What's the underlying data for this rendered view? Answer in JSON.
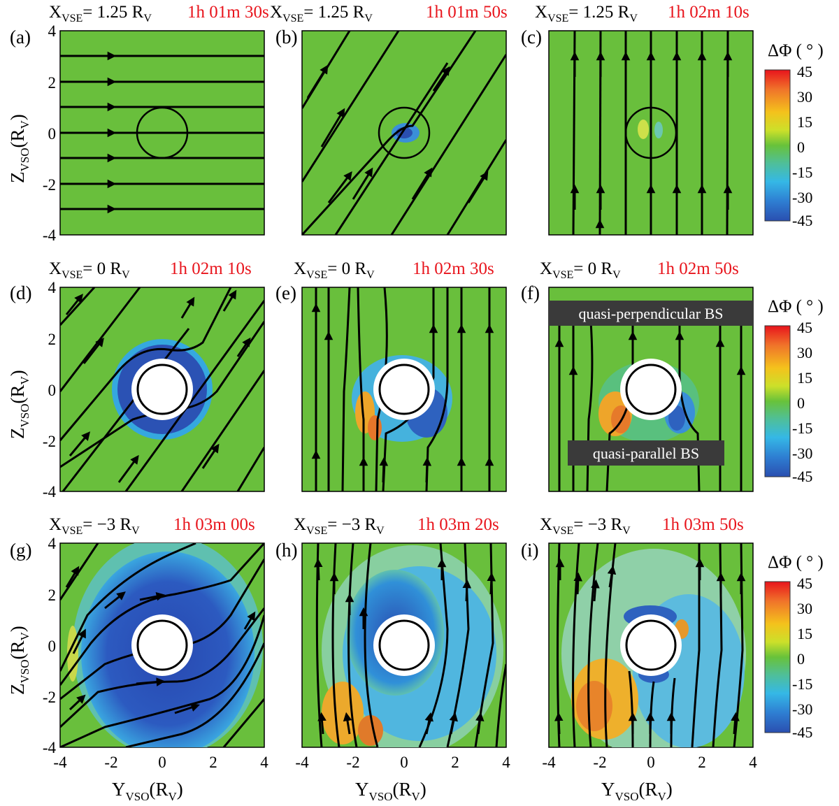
{
  "panels": [
    {
      "tag": "(a)",
      "x_prefix": "X",
      "x_sub": "VSE",
      "x_value": "= 1.25 R",
      "x_value_sub": "V",
      "time": "1h 01m 30s"
    },
    {
      "tag": "(b)",
      "x_prefix": "X",
      "x_sub": "VSE",
      "x_value": "= 1.25 R",
      "x_value_sub": "V",
      "time": "1h 01m 50s"
    },
    {
      "tag": "(c)",
      "x_prefix": "X",
      "x_sub": "VSE",
      "x_value": "= 1.25 R",
      "x_value_sub": "V",
      "time": "1h 02m 10s"
    },
    {
      "tag": "(d)",
      "x_prefix": "X",
      "x_sub": "VSE",
      "x_value": "= 0 R",
      "x_value_sub": "V",
      "time": "1h 02m 10s"
    },
    {
      "tag": "(e)",
      "x_prefix": "X",
      "x_sub": "VSE",
      "x_value": "= 0 R",
      "x_value_sub": "V",
      "time": "1h 02m 30s"
    },
    {
      "tag": "(f)",
      "x_prefix": "X",
      "x_sub": "VSE",
      "x_value": "= 0 R",
      "x_value_sub": "V",
      "time": "1h 02m 50s"
    },
    {
      "tag": "(g)",
      "x_prefix": "X",
      "x_sub": "VSE",
      "x_value": "= −3 R",
      "x_value_sub": "V",
      "time": "1h 03m 00s"
    },
    {
      "tag": "(h)",
      "x_prefix": "X",
      "x_sub": "VSE",
      "x_value": "= −3 R",
      "x_value_sub": "V",
      "time": "1h 03m 20s"
    },
    {
      "tag": "(i)",
      "x_prefix": "X",
      "x_sub": "VSE",
      "x_value": "= −3 R",
      "x_value_sub": "V",
      "time": "1h 03m 50s"
    }
  ],
  "axes": {
    "x_ticks": [
      "-4",
      "-2",
      "0",
      "2",
      "4"
    ],
    "y_ticks": [
      "4",
      "2",
      "0",
      "-2",
      "-4"
    ],
    "x_label_main": "Y",
    "x_label_sub": "VSO",
    "x_label_unit": "(R",
    "x_label_unit_sub": "V",
    "x_label_close": ")",
    "y_label_main": "Z",
    "y_label_sub": "VSO",
    "y_label_unit": "(R",
    "y_label_unit_sub": "V",
    "y_label_close": ")"
  },
  "colorbar": {
    "title": "ΔΦ ( ° )",
    "ticks": [
      "45",
      "30",
      "15",
      "0",
      "-15",
      "-30",
      "-45"
    ],
    "colors": [
      "#e8141c",
      "#f0742a",
      "#f4c21c",
      "#cce02a",
      "#68c23a",
      "#4fbf9a",
      "#35b8e6",
      "#2e7ed2",
      "#2a4fb0"
    ]
  },
  "annotations": {
    "quasi_perpendicular": "quasi-perpendicular BS",
    "quasi_parallel": "quasi-parallel BS"
  },
  "colors": {
    "background_field": "#69bf3c",
    "negative": "#2a55b5",
    "negative_light": "#47aee0",
    "positive": "#ef8c24",
    "time_text": "#e8141c"
  }
}
